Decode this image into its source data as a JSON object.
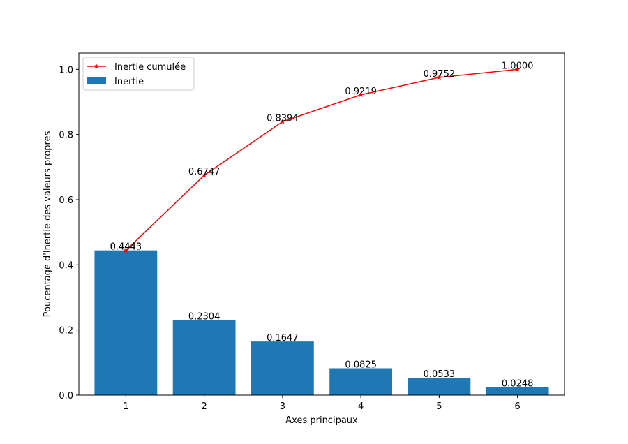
{
  "chart_data": {
    "type": "bar",
    "categories": [
      "1",
      "2",
      "3",
      "4",
      "5",
      "6"
    ],
    "x": [
      1,
      2,
      3,
      4,
      5,
      6
    ],
    "series": [
      {
        "name": "Inertie",
        "kind": "bar",
        "color": "#1f77b4",
        "values": [
          0.4443,
          0.2304,
          0.1647,
          0.0825,
          0.0533,
          0.0248
        ],
        "labels": [
          "0.4443",
          "0.2304",
          "0.1647",
          "0.0825",
          "0.0533",
          "0.0248"
        ]
      },
      {
        "name": "Inertie cumulée",
        "kind": "line",
        "color": "#ff0000",
        "marker": "star",
        "values": [
          0.4443,
          0.6747,
          0.8394,
          0.9219,
          0.9752,
          1.0
        ],
        "labels": [
          "0.4443",
          "0.6747",
          "0.8394",
          "0.9219",
          "0.9752",
          "1.0000"
        ]
      }
    ],
    "xlabel": "Axes principaux",
    "ylabel": "Poucentage d'Inertie des valeurs propres",
    "xlim": [
      0.4,
      6.6
    ],
    "ylim": [
      0.0,
      1.05
    ],
    "xticks": [
      "1",
      "2",
      "3",
      "4",
      "5",
      "6"
    ],
    "yticks": [
      "0.0",
      "0.2",
      "0.4",
      "0.6",
      "0.8",
      "1.0"
    ],
    "ytick_values": [
      0.0,
      0.2,
      0.4,
      0.6,
      0.8,
      1.0
    ],
    "grid": false,
    "legend_position": "top-left"
  }
}
